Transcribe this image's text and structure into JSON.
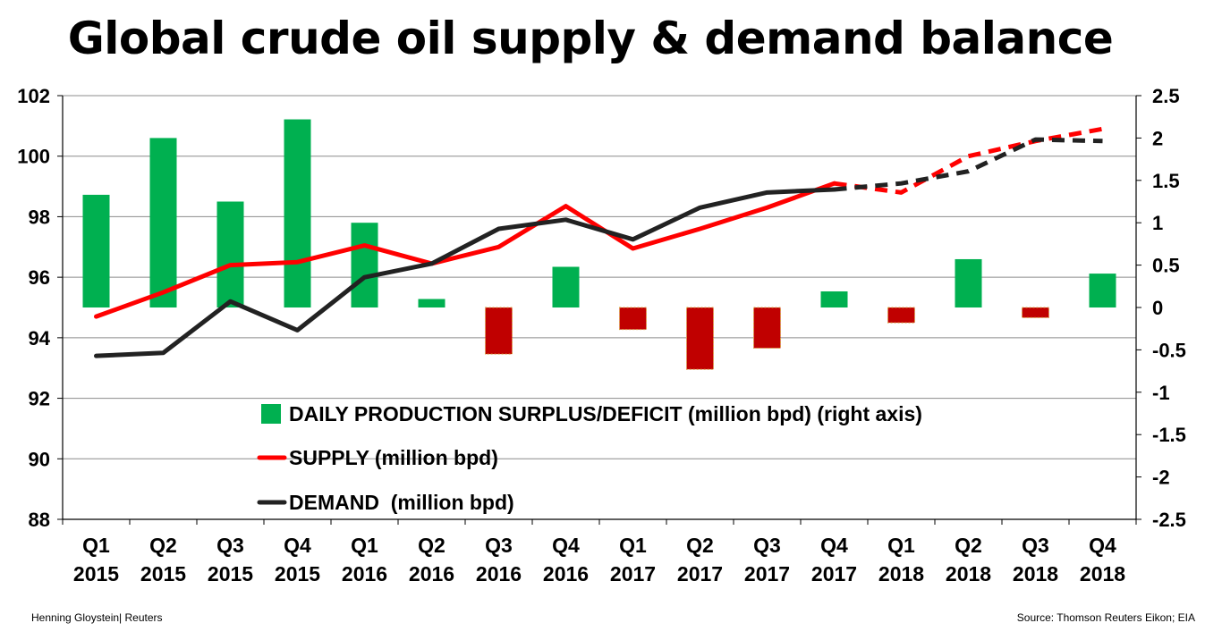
{
  "title": "Global crude oil supply & demand balance",
  "credit": "Henning Gloystein| Reuters",
  "source": "Source: Thomson Reuters Eikon; EIA",
  "colors": {
    "surplus": "#00b050",
    "deficit": "#c00000",
    "supply": "#ff0000",
    "demand": "#222222"
  },
  "chart_data": {
    "type": "bar+line",
    "categories": [
      [
        "Q1",
        "2015"
      ],
      [
        "Q2",
        "2015"
      ],
      [
        "Q3",
        "2015"
      ],
      [
        "Q4",
        "2015"
      ],
      [
        "Q1",
        "2016"
      ],
      [
        "Q2",
        "2016"
      ],
      [
        "Q3",
        "2016"
      ],
      [
        "Q4",
        "2016"
      ],
      [
        "Q1",
        "2017"
      ],
      [
        "Q2",
        "2017"
      ],
      [
        "Q3",
        "2017"
      ],
      [
        "Q4",
        "2017"
      ],
      [
        "Q1",
        "2018"
      ],
      [
        "Q2",
        "2018"
      ],
      [
        "Q3",
        "2018"
      ],
      [
        "Q4",
        "2018"
      ]
    ],
    "left_axis": {
      "min": 88,
      "max": 102,
      "step": 2,
      "ticks": [
        "88",
        "90",
        "92",
        "94",
        "96",
        "98",
        "100",
        "102"
      ]
    },
    "right_axis": {
      "min": -2.5,
      "max": 2.5,
      "step": 0.5,
      "ticks": [
        "-2.5",
        "-2",
        "-1.5",
        "-1",
        "-0.5",
        "0",
        "0.5",
        "1",
        "1.5",
        "2",
        "2.5"
      ]
    },
    "grid": true,
    "legend_position": "bottom-center inside plot",
    "series": [
      {
        "name": "DAILY PRODUCTION SURPLUS/DEFICIT (million bpd) (right axis)",
        "type": "bar",
        "axis": "right",
        "values": [
          1.33,
          2.0,
          1.25,
          2.22,
          1.0,
          0.1,
          -0.55,
          0.48,
          -0.26,
          -0.73,
          -0.48,
          0.19,
          -0.18,
          0.57,
          -0.12,
          0.4
        ]
      },
      {
        "name": "SUPPLY (million bpd)",
        "type": "line",
        "axis": "left",
        "values": [
          94.7,
          95.5,
          96.4,
          96.5,
          97.05,
          96.45,
          97.0,
          98.35,
          96.95,
          97.6,
          98.3,
          99.1,
          98.8,
          100.0,
          100.5,
          100.9
        ],
        "forecast_from_index": 11
      },
      {
        "name": "DEMAND  (million bpd)",
        "type": "line",
        "axis": "left",
        "values": [
          93.4,
          93.5,
          95.2,
          94.25,
          96.0,
          96.45,
          97.6,
          97.9,
          97.25,
          98.3,
          98.8,
          98.9,
          99.1,
          99.5,
          100.55,
          100.5
        ],
        "forecast_from_index": 11
      }
    ]
  }
}
